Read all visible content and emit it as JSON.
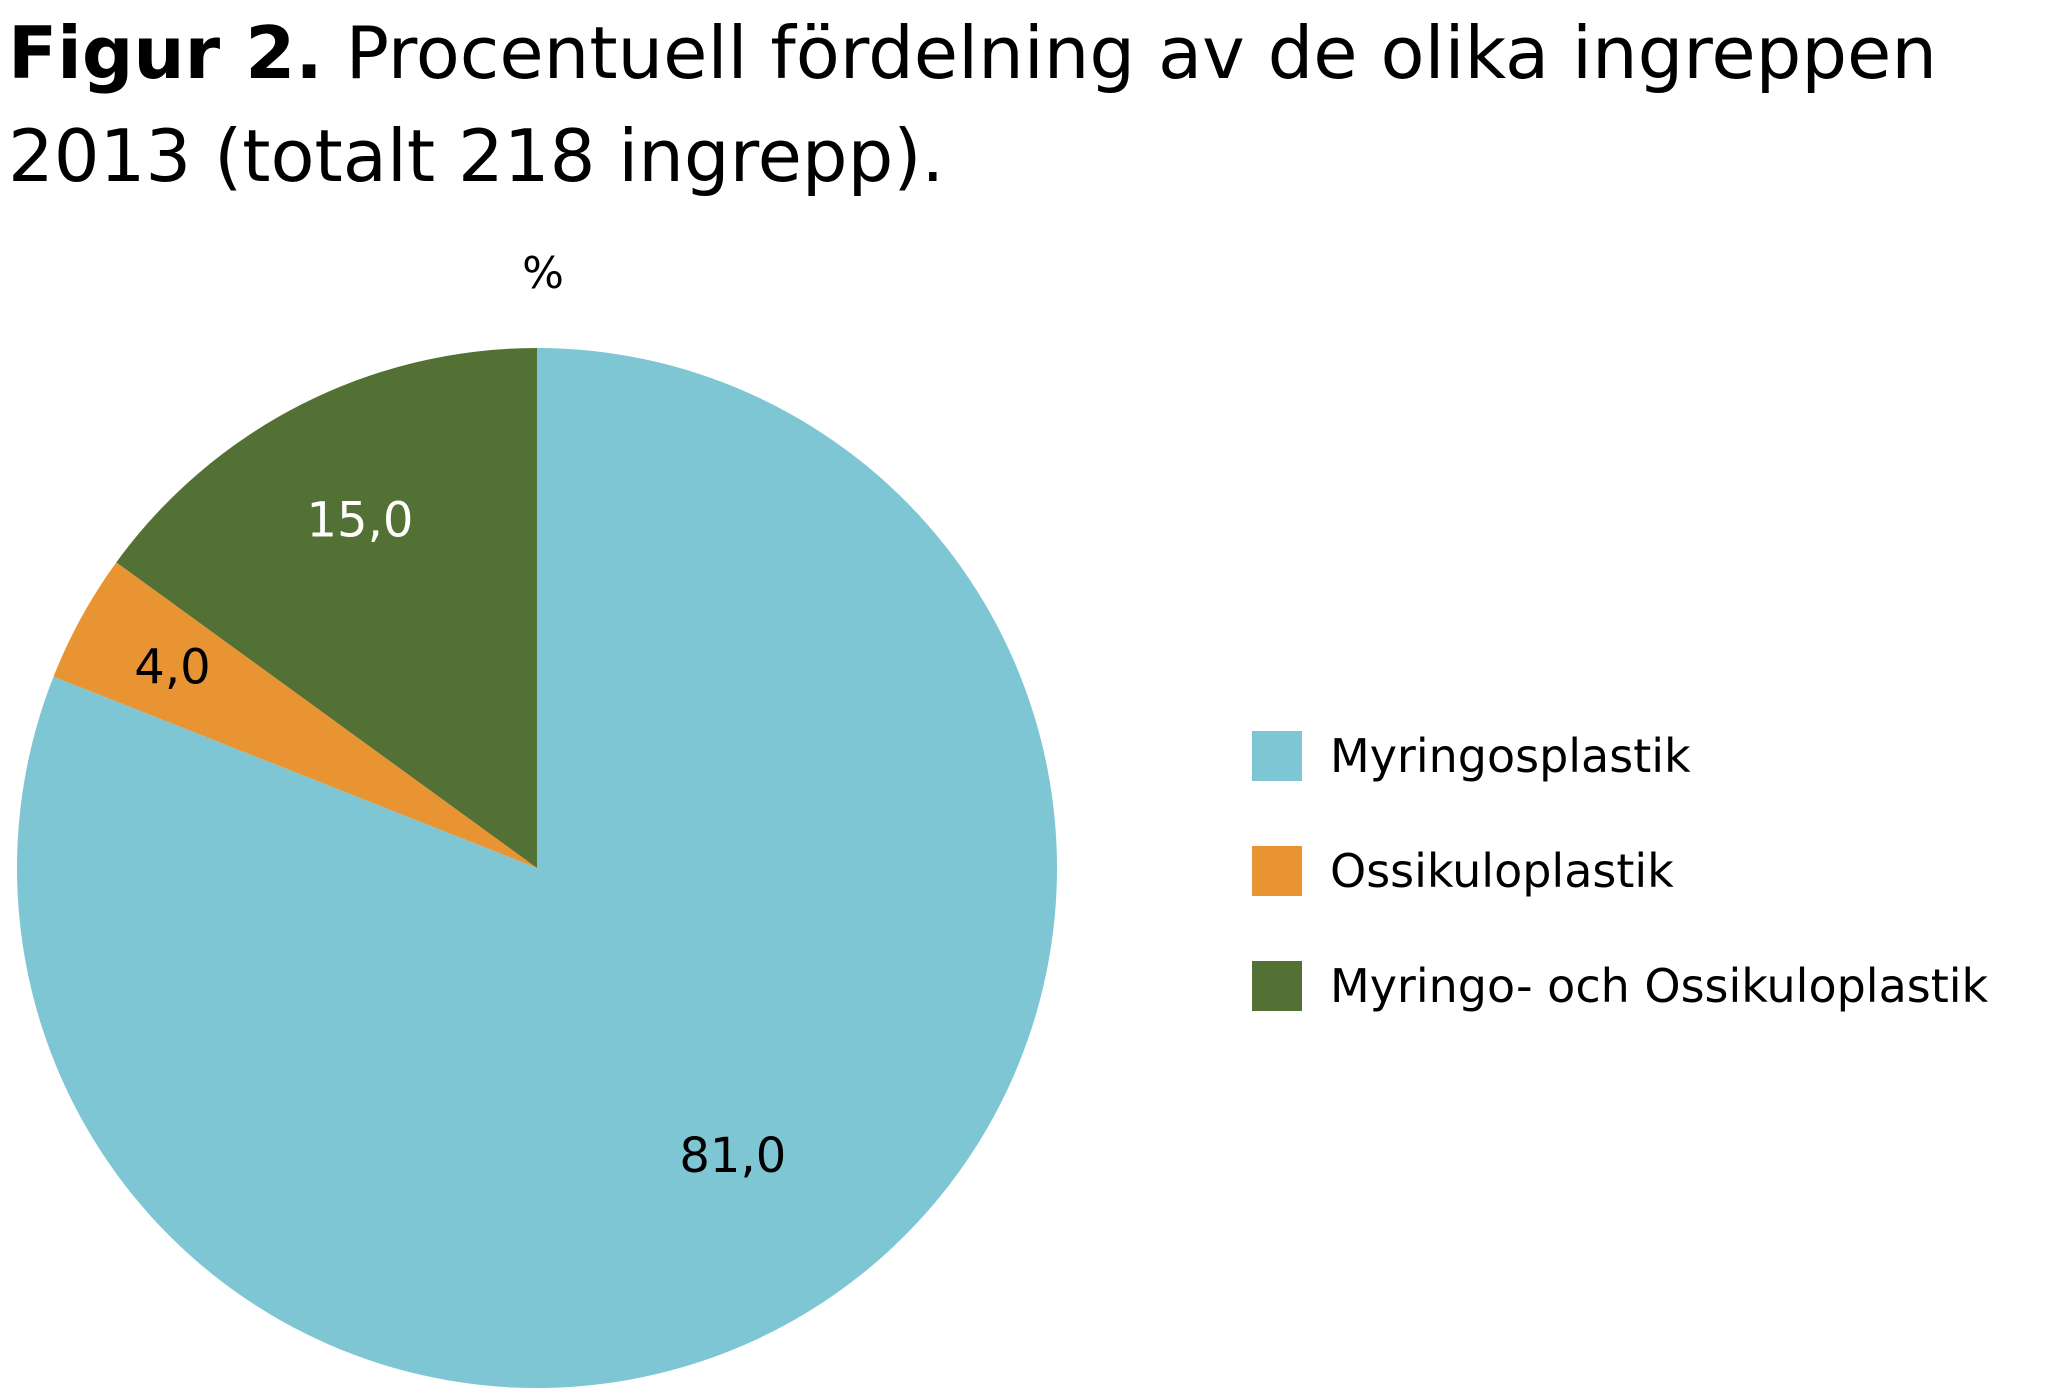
{
  "figure": {
    "title_prefix": "Figur 2.",
    "title_text": " Procentuell fördelning av de olika ingreppen 2013 (totalt 218 ingrepp)."
  },
  "chart_data": {
    "type": "pie",
    "unit_label": "%",
    "start_angle": "12 o'clock",
    "direction": "clockwise",
    "legend_position": "right",
    "slices": [
      {
        "name": "Myringosplastik",
        "value": 81.0,
        "label": "81,0",
        "color": "#7ec6d4",
        "label_color": "#000000"
      },
      {
        "name": "Ossikuloplastik",
        "value": 4.0,
        "label": "4,0",
        "color": "#e99433",
        "label_color": "#000000"
      },
      {
        "name": "Myringo- och Ossikuloplastik",
        "value": 15.0,
        "label": "15,0",
        "color": "#537134",
        "label_color": "#ffffff"
      }
    ]
  }
}
